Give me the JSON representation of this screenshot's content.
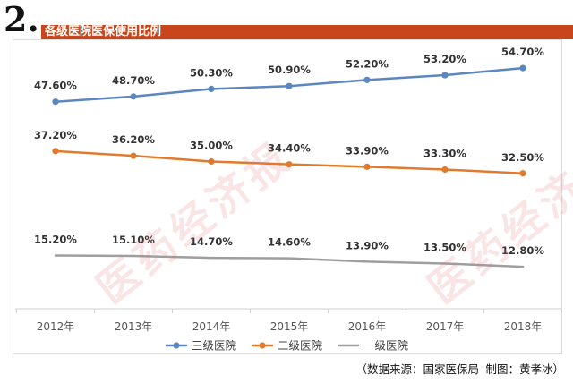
{
  "header": {
    "number": "2.",
    "title": "各级医院医保使用比例"
  },
  "watermark": "医药经济报",
  "source_note": "（数据来源：国家医保局  制图：黄孝冰）",
  "colors": {
    "header_bar": "#c8461c",
    "series_1": "#5b86c0",
    "series_2": "#e07b2e",
    "series_3": "#9e9e9e"
  },
  "chart_data": {
    "type": "line",
    "x": [
      "2012年",
      "2013年",
      "2014年",
      "2015年",
      "2016年",
      "2017年",
      "2018年"
    ],
    "ylim": [
      0,
      60
    ],
    "grid": false,
    "legend_position": "bottom",
    "series": [
      {
        "name": "三级医院",
        "color": "#5b86c0",
        "marker": "circle",
        "values": [
          47.6,
          48.7,
          50.3,
          50.9,
          52.2,
          53.2,
          54.7
        ],
        "labels": [
          "47.60%",
          "48.70%",
          "50.30%",
          "50.90%",
          "52.20%",
          "53.20%",
          "54.70%"
        ]
      },
      {
        "name": "二级医院",
        "color": "#e07b2e",
        "marker": "circle",
        "values": [
          37.2,
          36.2,
          35.0,
          34.4,
          33.9,
          33.3,
          32.5
        ],
        "labels": [
          "37.20%",
          "36.20%",
          "35.00%",
          "34.40%",
          "33.90%",
          "33.30%",
          "32.50%"
        ]
      },
      {
        "name": "一级医院",
        "color": "#9e9e9e",
        "marker": "none",
        "values": [
          15.2,
          15.1,
          14.7,
          14.6,
          13.9,
          13.5,
          12.8
        ],
        "labels": [
          "15.20%",
          "15.10%",
          "14.70%",
          "14.60%",
          "13.90%",
          "13.50%",
          "12.80%"
        ]
      }
    ]
  }
}
